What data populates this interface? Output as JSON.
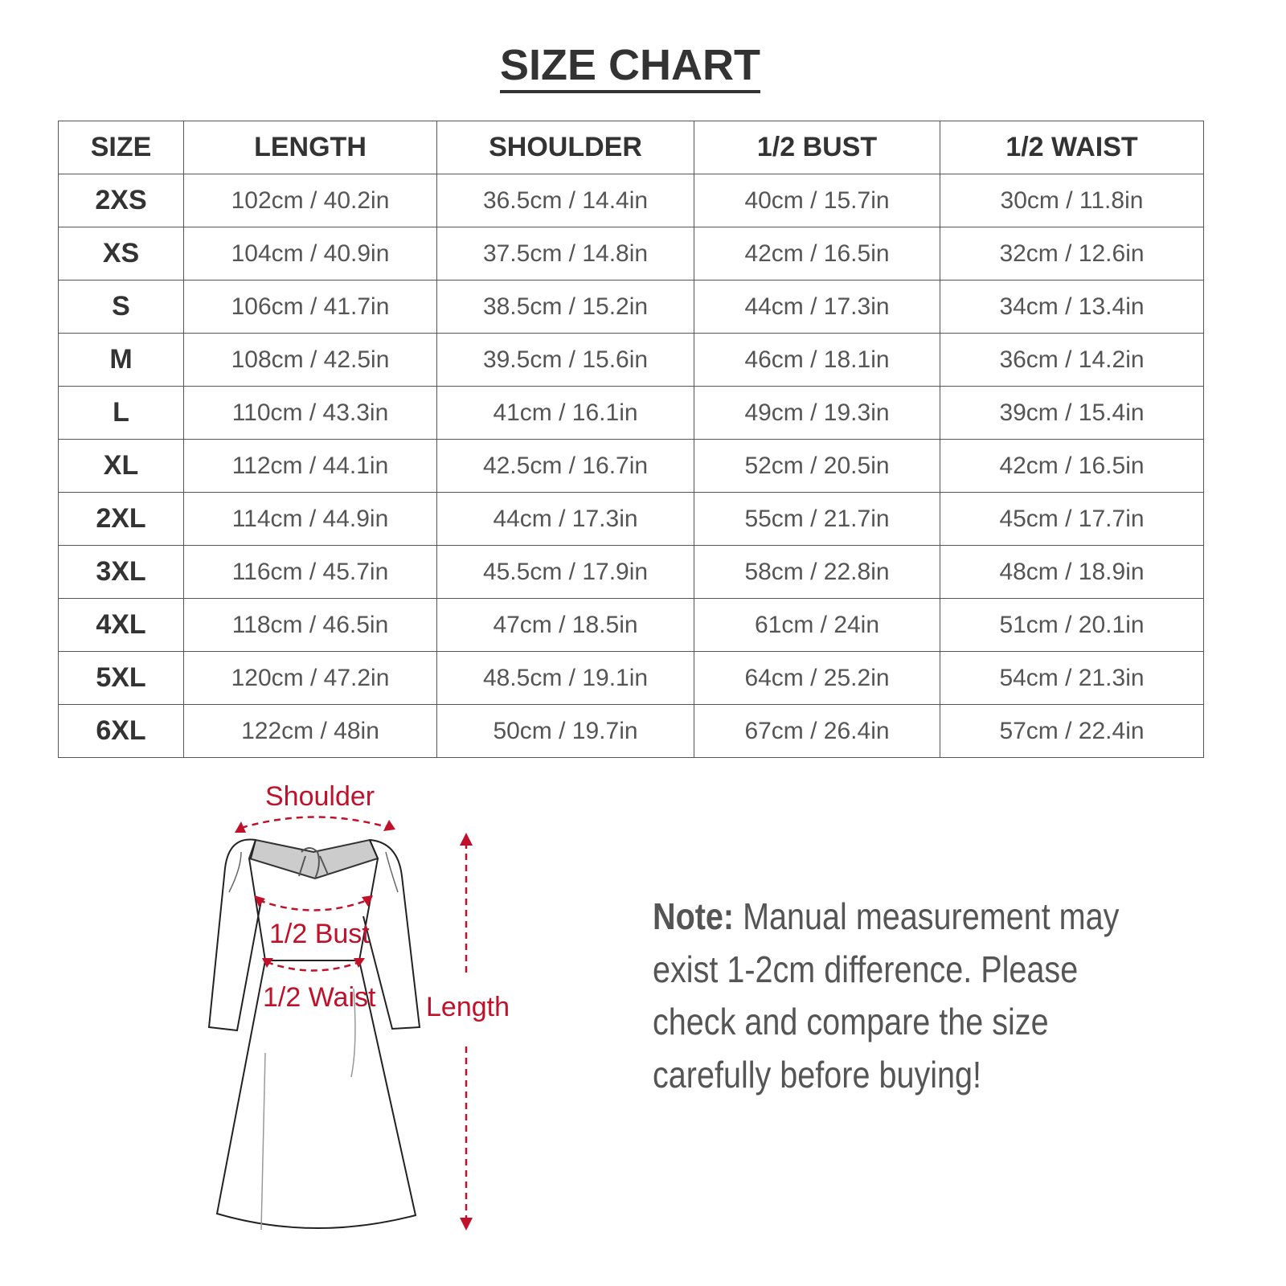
{
  "title": "SIZE CHART",
  "table": {
    "headers": [
      "SIZE",
      "LENGTH",
      "SHOULDER",
      "1/2 BUST",
      "1/2 WAIST"
    ],
    "rows": [
      [
        "2XS",
        "102cm / 40.2in",
        "36.5cm / 14.4in",
        "40cm / 15.7in",
        "30cm / 11.8in"
      ],
      [
        "XS",
        "104cm / 40.9in",
        "37.5cm / 14.8in",
        "42cm / 16.5in",
        "32cm / 12.6in"
      ],
      [
        "S",
        "106cm / 41.7in",
        "38.5cm / 15.2in",
        "44cm / 17.3in",
        "34cm / 13.4in"
      ],
      [
        "M",
        "108cm / 42.5in",
        "39.5cm / 15.6in",
        "46cm / 18.1in",
        "36cm / 14.2in"
      ],
      [
        "L",
        "110cm / 43.3in",
        "41cm / 16.1in",
        "49cm / 19.3in",
        "39cm / 15.4in"
      ],
      [
        "XL",
        "112cm / 44.1in",
        "42.5cm / 16.7in",
        "52cm / 20.5in",
        "42cm / 16.5in"
      ],
      [
        "2XL",
        "114cm / 44.9in",
        "44cm / 17.3in",
        "55cm / 21.7in",
        "45cm / 17.7in"
      ],
      [
        "3XL",
        "116cm / 45.7in",
        "45.5cm / 17.9in",
        "58cm / 22.8in",
        "48cm / 18.9in"
      ],
      [
        "4XL",
        "118cm / 46.5in",
        "47cm / 18.5in",
        "61cm / 24in",
        "51cm / 20.1in"
      ],
      [
        "5XL",
        "120cm / 47.2in",
        "48.5cm / 19.1in",
        "64cm / 25.2in",
        "54cm / 21.3in"
      ],
      [
        "6XL",
        "122cm / 48in",
        "50cm / 19.7in",
        "67cm / 26.4in",
        "57cm / 22.4in"
      ]
    ]
  },
  "diagram": {
    "labels": {
      "shoulder": "Shoulder",
      "bust": "1/2 Bust",
      "waist": "1/2 Waist",
      "length": "Length"
    },
    "accent_color": "#c0102a"
  },
  "note": {
    "label": "Note:",
    "text": " Manual measurement may exist 1-2cm difference. Please check and compare the size carefully before buying!"
  }
}
